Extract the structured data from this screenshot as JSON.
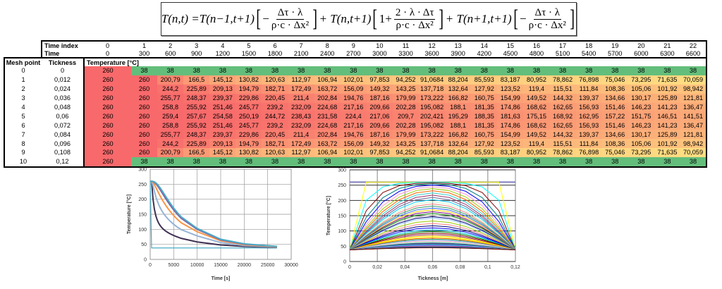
{
  "formula": {
    "lhs": "T(n,t) = ",
    "term1": "T(n−1,t+1)",
    "term2": "+ T(n,t+1)",
    "term3": "+ T(n+1,t+1)",
    "minus": "−",
    "one_plus": "1+",
    "frac_a_num": "Δτ · λ",
    "frac_a_den": "ρ·c · Δx²",
    "frac_b_num": "2 · λ · Δτ",
    "frac_b_den": "ρ·c · Δx²"
  },
  "table": {
    "time_index_label": "Time index",
    "time_label": "Time",
    "mesh_point_label": "Mesh point",
    "thickness_label": "Tickness",
    "temperature_label": "Temperature [°C]",
    "time_index": [
      "0",
      "1",
      "2",
      "3",
      "4",
      "5",
      "6",
      "7",
      "8",
      "9",
      "10",
      "11",
      "12",
      "13",
      "14",
      "15",
      "16",
      "17",
      "18",
      "19",
      "20",
      "21",
      "22"
    ],
    "time": [
      "0",
      "300",
      "600",
      "900",
      "1200",
      "1500",
      "1800",
      "2100",
      "2400",
      "2700",
      "3000",
      "3300",
      "3600",
      "3900",
      "4200",
      "4500",
      "4800",
      "5100",
      "5400",
      "5700",
      "6000",
      "6300",
      "6600"
    ],
    "rows": [
      {
        "mesh": "0",
        "thick": "0",
        "values": [
          "260",
          "38",
          "38",
          "38",
          "38",
          "38",
          "38",
          "38",
          "38",
          "38",
          "38",
          "38",
          "38",
          "38",
          "38",
          "38",
          "38",
          "38",
          "38",
          "38",
          "38",
          "38",
          "38"
        ]
      },
      {
        "mesh": "1",
        "thick": "0,012",
        "values": [
          "260",
          "260",
          "200,79",
          "166,5",
          "145,12",
          "130,82",
          "120,63",
          "112,97",
          "106,94",
          "102,01",
          "97,853",
          "94,252",
          "91,0684",
          "88,204",
          "85,593",
          "83,187",
          "80,952",
          "78,862",
          "76,898",
          "75,046",
          "73,295",
          "71,635",
          "70,059"
        ]
      },
      {
        "mesh": "2",
        "thick": "0,024",
        "values": [
          "260",
          "260",
          "244,2",
          "225,89",
          "209,13",
          "194,79",
          "182,71",
          "172,49",
          "163,72",
          "156,09",
          "149,32",
          "143,25",
          "137,718",
          "132,64",
          "127,92",
          "123,52",
          "119,4",
          "115,51",
          "111,84",
          "108,36",
          "105,06",
          "101,92",
          "98,942"
        ]
      },
      {
        "mesh": "3",
        "thick": "0,036",
        "values": [
          "260",
          "260",
          "255,77",
          "248,37",
          "239,37",
          "229,86",
          "220,45",
          "211,4",
          "202,84",
          "194,76",
          "187,16",
          "179,99",
          "173,222",
          "166,82",
          "160,75",
          "154,99",
          "149,52",
          "144,32",
          "139,37",
          "134,66",
          "130,17",
          "125,89",
          "121,81"
        ]
      },
      {
        "mesh": "4",
        "thick": "0,048",
        "values": [
          "260",
          "260",
          "258,8",
          "255,92",
          "251,46",
          "245,77",
          "239,2",
          "232,09",
          "224,68",
          "217,16",
          "209,66",
          "202,28",
          "195,082",
          "188,1",
          "181,35",
          "174,86",
          "168,62",
          "162,65",
          "156,93",
          "151,46",
          "146,23",
          "141,23",
          "136,47"
        ]
      },
      {
        "mesh": "5",
        "thick": "0,06",
        "values": [
          "260",
          "260",
          "259,4",
          "257,67",
          "254,58",
          "250,19",
          "244,72",
          "238,43",
          "231,58",
          "224,4",
          "217,06",
          "209,7",
          "202,421",
          "195,29",
          "188,35",
          "181,63",
          "175,15",
          "168,92",
          "162,95",
          "157,22",
          "151,75",
          "146,51",
          "141,51"
        ]
      },
      {
        "mesh": "6",
        "thick": "0,072",
        "values": [
          "260",
          "260",
          "258,8",
          "255,92",
          "251,46",
          "245,77",
          "239,2",
          "232,09",
          "224,68",
          "217,16",
          "209,66",
          "202,28",
          "195,082",
          "188,1",
          "181,35",
          "174,86",
          "168,62",
          "162,65",
          "156,93",
          "151,46",
          "146,23",
          "141,23",
          "136,47"
        ]
      },
      {
        "mesh": "7",
        "thick": "0,084",
        "values": [
          "260",
          "260",
          "255,77",
          "248,37",
          "239,37",
          "229,86",
          "220,45",
          "211,4",
          "202,84",
          "194,76",
          "187,16",
          "179,99",
          "173,222",
          "166,82",
          "160,75",
          "154,99",
          "149,52",
          "144,32",
          "139,37",
          "134,66",
          "130,17",
          "125,89",
          "121,81"
        ]
      },
      {
        "mesh": "8",
        "thick": "0,096",
        "values": [
          "260",
          "260",
          "244,2",
          "225,89",
          "209,13",
          "194,79",
          "182,71",
          "172,49",
          "163,72",
          "156,09",
          "149,32",
          "143,25",
          "137,718",
          "132,64",
          "127,92",
          "123,52",
          "119,4",
          "115,51",
          "111,84",
          "108,36",
          "105,06",
          "101,92",
          "98,942"
        ]
      },
      {
        "mesh": "9",
        "thick": "0,108",
        "values": [
          "260",
          "260",
          "200,79",
          "166,5",
          "145,12",
          "130,82",
          "120,63",
          "112,97",
          "106,94",
          "102,01",
          "97,853",
          "94,252",
          "91,0684",
          "88,204",
          "85,593",
          "83,187",
          "80,952",
          "78,862",
          "76,898",
          "75,046",
          "73,295",
          "71,635",
          "70,059"
        ]
      },
      {
        "mesh": "10",
        "thick": "0,12",
        "values": [
          "260",
          "38",
          "38",
          "38",
          "38",
          "38",
          "38",
          "38",
          "38",
          "38",
          "38",
          "38",
          "38",
          "38",
          "38",
          "38",
          "38",
          "38",
          "38",
          "38",
          "38",
          "38",
          "38"
        ]
      }
    ]
  },
  "colors": {
    "low": "#63be7b",
    "mid": "#ffdd82",
    "high": "#f8696b"
  },
  "chart_data": [
    {
      "type": "line",
      "xlabel": "Time [s]",
      "ylabel": "Temperature [°C]",
      "xlim": [
        0,
        30000
      ],
      "ylim": [
        0,
        300
      ],
      "xticks": [
        "0",
        "5000",
        "10000",
        "15000",
        "20000",
        "25000",
        "30000"
      ],
      "yticks": [
        "0",
        "50",
        "100",
        "150",
        "200",
        "250",
        "300"
      ],
      "grid": true,
      "x": [
        0,
        300,
        600,
        900,
        1200,
        1500,
        1800,
        2100,
        2400,
        2700,
        3000,
        3300,
        3600,
        3900,
        4200,
        4500,
        4800,
        5100,
        5400,
        5700,
        6000,
        6300,
        6600,
        10000,
        15000,
        20000,
        27000
      ],
      "series": [
        {
          "color": "#4bacc6",
          "values": [
            260,
            38,
            38,
            38,
            38,
            38,
            38,
            38,
            38,
            38,
            38,
            38,
            38,
            38,
            38,
            38,
            38,
            38,
            38,
            38,
            38,
            38,
            38,
            38,
            38,
            38,
            38
          ]
        },
        {
          "color": "#403152",
          "values": [
            260,
            260,
            200.79,
            166.5,
            145.12,
            130.82,
            120.63,
            112.97,
            106.94,
            102.01,
            97.853,
            94.252,
            91.0684,
            88.204,
            85.593,
            83.187,
            80.952,
            78.862,
            76.898,
            75.046,
            73.295,
            71.635,
            70.059,
            58,
            48,
            43,
            40
          ]
        },
        {
          "color": "#95b3d7",
          "values": [
            260,
            260,
            244.2,
            225.89,
            209.13,
            194.79,
            182.71,
            172.49,
            163.72,
            156.09,
            149.32,
            143.25,
            137.718,
            132.64,
            127.92,
            123.52,
            119.4,
            115.51,
            111.84,
            108.36,
            105.06,
            101.92,
            98.942,
            78,
            56,
            46,
            41
          ]
        },
        {
          "color": "#f79646",
          "values": [
            260,
            260,
            255.77,
            248.37,
            239.37,
            229.86,
            220.45,
            211.4,
            202.84,
            194.76,
            187.16,
            179.99,
            173.222,
            166.82,
            160.75,
            154.99,
            149.52,
            144.32,
            139.37,
            134.66,
            130.17,
            125.89,
            121.81,
            92,
            62,
            49,
            42
          ]
        },
        {
          "color": "#8064a2",
          "values": [
            260,
            260,
            258.8,
            255.92,
            251.46,
            245.77,
            239.2,
            232.09,
            224.68,
            217.16,
            209.66,
            202.28,
            195.082,
            188.1,
            181.35,
            174.86,
            168.62,
            162.65,
            156.93,
            151.46,
            146.23,
            141.23,
            136.47,
            100,
            65,
            51,
            43
          ]
        },
        {
          "color": "#4bacc6",
          "values": [
            260,
            260,
            259.4,
            257.67,
            254.58,
            250.19,
            244.72,
            238.43,
            231.58,
            224.4,
            217.06,
            209.7,
            202.421,
            195.29,
            188.35,
            181.63,
            175.15,
            168.92,
            162.95,
            157.22,
            151.75,
            146.51,
            141.51,
            103,
            67,
            52,
            43
          ]
        }
      ]
    },
    {
      "type": "line",
      "xlabel": "Tickness [m]",
      "ylabel": "Temperature [°C]",
      "xlim": [
        0,
        0.12
      ],
      "ylim": [
        0,
        300
      ],
      "xticks": [
        "0",
        "0,02",
        "0,04",
        "0,06",
        "0,08",
        "0,1",
        "0,12"
      ],
      "yticks": [
        "0",
        "50",
        "100",
        "150",
        "200",
        "250",
        "300"
      ],
      "grid": true,
      "x": [
        0,
        0.012,
        0.024,
        0.036,
        0.048,
        0.06,
        0.072,
        0.084,
        0.096,
        0.108,
        0.12
      ],
      "series_source": "table columns (one profile per time step)"
    }
  ]
}
